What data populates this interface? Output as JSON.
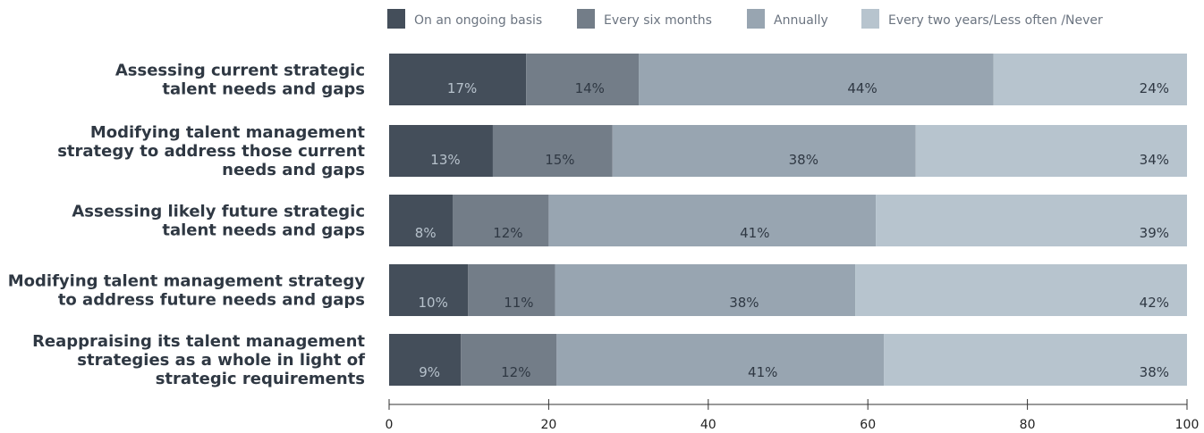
{
  "chart_data": {
    "type": "bar",
    "orientation": "horizontal",
    "stacked": true,
    "categories": [
      [
        "Assessing current strategic",
        "talent needs and gaps"
      ],
      [
        "Modifying talent management",
        "strategy to address those current",
        "needs and gaps"
      ],
      [
        "Assessing likely future strategic",
        "talent needs and gaps"
      ],
      [
        "Modifying talent management strategy",
        "to address future needs and gaps"
      ],
      [
        "Reappraising its talent management",
        "strategies as a whole in light of",
        "strategic requirements"
      ]
    ],
    "series": [
      {
        "name": "On an ongoing basis",
        "color": "#444e5a",
        "label_color": "#b7c2cc",
        "values": [
          17,
          13,
          8,
          10,
          9
        ]
      },
      {
        "name": "Every six months",
        "color": "#737d88",
        "label_color": "#2f3843",
        "values": [
          14,
          15,
          12,
          11,
          12
        ]
      },
      {
        "name": "Annually",
        "color": "#98a5b1",
        "label_color": "#2f3843",
        "values": [
          44,
          38,
          41,
          38,
          41
        ]
      },
      {
        "name": "Every two years/Less often /Never",
        "color": "#b7c4ce",
        "label_color": "#2f3843",
        "values": [
          24,
          34,
          39,
          42,
          38
        ]
      }
    ],
    "xlim": [
      0,
      100
    ],
    "xticks": [
      0,
      20,
      40,
      60,
      80,
      100
    ],
    "legend_position": "top",
    "grid": false
  }
}
